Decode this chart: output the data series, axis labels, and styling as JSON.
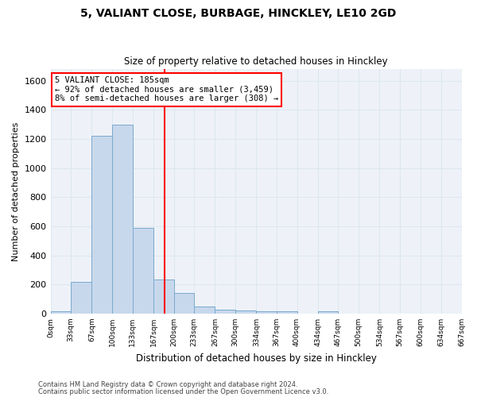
{
  "title": "5, VALIANT CLOSE, BURBAGE, HINCKLEY, LE10 2GD",
  "subtitle": "Size of property relative to detached houses in Hinckley",
  "xlabel": "Distribution of detached houses by size in Hinckley",
  "ylabel": "Number of detached properties",
  "bar_color": "#c8d8ec",
  "bar_edge_color": "#7aaace",
  "vline_x": 185,
  "vline_color": "red",
  "annotation_lines": [
    "5 VALIANT CLOSE: 185sqm",
    "← 92% of detached houses are smaller (3,459)",
    "8% of semi-detached houses are larger (308) →"
  ],
  "annotation_box_color": "white",
  "annotation_box_edge_color": "red",
  "bin_edges": [
    0,
    33,
    67,
    100,
    133,
    167,
    200,
    233,
    267,
    300,
    334,
    367,
    400,
    434,
    467,
    500,
    534,
    567,
    600,
    634,
    667
  ],
  "bar_heights": [
    15,
    220,
    1220,
    1300,
    590,
    235,
    140,
    48,
    27,
    22,
    15,
    15,
    0,
    18,
    0,
    0,
    0,
    0,
    0,
    0
  ],
  "ylim": [
    0,
    1680
  ],
  "yticks": [
    0,
    200,
    400,
    600,
    800,
    1000,
    1200,
    1400,
    1600
  ],
  "grid_color": "#dde8f0",
  "footnote1": "Contains HM Land Registry data © Crown copyright and database right 2024.",
  "footnote2": "Contains public sector information licensed under the Open Government Licence v3.0.",
  "bg_color": "#ffffff",
  "plot_bg_color": "#eef2f8"
}
